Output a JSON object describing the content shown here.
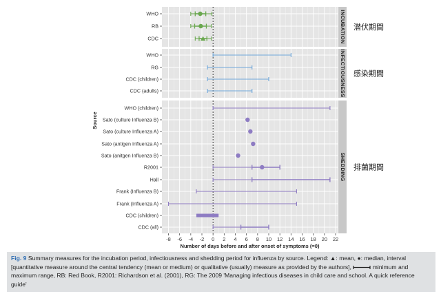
{
  "chart_data": {
    "type": "interval",
    "xlabel": "Number of days before and after onset of symptoms (=0)",
    "ylabel": "Source",
    "xlim": [
      -9,
      23
    ],
    "xticks": [
      -8,
      -6,
      -4,
      -2,
      0,
      2,
      4,
      6,
      8,
      10,
      12,
      14,
      16,
      18,
      20,
      22
    ],
    "reference_line": 0,
    "panels": [
      {
        "id": "incubation",
        "strip_label": "INCUBATION",
        "japanese_label": "潜伏期間",
        "color": "#6aa84f",
        "rows": [
          {
            "label": "WHO",
            "min": -4,
            "max": -0.2,
            "interval": [
              -3.2,
              -1.3
            ],
            "median": -2.3
          },
          {
            "label": "RB",
            "min": -4,
            "max": -0.3,
            "interval": [
              -3.3,
              -1.2
            ],
            "median": -2.2
          },
          {
            "label": "CDC",
            "min": -3.2,
            "max": -0.3,
            "interval": [
              -2.5,
              -1.1
            ],
            "mean": -1.8
          }
        ]
      },
      {
        "id": "infectiousness",
        "strip_label": "INFECTIOUSNESS",
        "japanese_label": "感染期間",
        "color": "#6fa8dc",
        "rows": [
          {
            "label": "WHO",
            "min": 0,
            "max": 14
          },
          {
            "label": "RG",
            "min": -1,
            "max": 7
          },
          {
            "label": "CDC (children)",
            "min": -1,
            "max": 10
          },
          {
            "label": "CDC (adults)",
            "min": -1,
            "max": 7
          }
        ]
      },
      {
        "id": "shedding",
        "strip_label": "SHEDDING",
        "japanese_label": "排菌期間",
        "color": "#8e7cc3",
        "rows": [
          {
            "label": "WHO (children)",
            "min": 0,
            "max": 21
          },
          {
            "label": "Sato (culture Influenza B)",
            "median": 6.2
          },
          {
            "label": "Sato (culture Influenza A)",
            "median": 6.7
          },
          {
            "label": "Sato (antigen Influenza A)",
            "median": 7.2
          },
          {
            "label": "Sato (anitgen Influenza B)",
            "median": 4.5
          },
          {
            "label": "R2001",
            "min": 0,
            "max": 12,
            "interval": [
              7,
              12
            ],
            "median": 8.8
          },
          {
            "label": "Hall",
            "min": 0,
            "max": 21,
            "interval": [
              7,
              21
            ]
          },
          {
            "label": "Frank (Influenza B)",
            "min": -3,
            "max": 15
          },
          {
            "label": "Frank (Influenza A)",
            "min": -8,
            "max": 15
          },
          {
            "label": "CDC (children)",
            "min": -3,
            "max": 1,
            "thick": true
          },
          {
            "label": "CDC (all)",
            "min": 0,
            "max": 10,
            "interval": [
              5,
              10
            ]
          }
        ]
      }
    ]
  },
  "caption": {
    "fig_label": "Fig. 9",
    "text_part1": "Summary measures for the incubation period, infectiousness and shedding period for influenza by source. Legend: ▲: mean, ●: median, interval [quantitative measure around the central tendency (mean or medium) or qualitative (usually) measure as provided by the authors],",
    "text_part2": "minimum and maximum range, RB: Red Book, R2001: Richardson et al. (2001), RG: The 2009 'Managing infectious diseases in child care and school. A quick reference guide'"
  }
}
